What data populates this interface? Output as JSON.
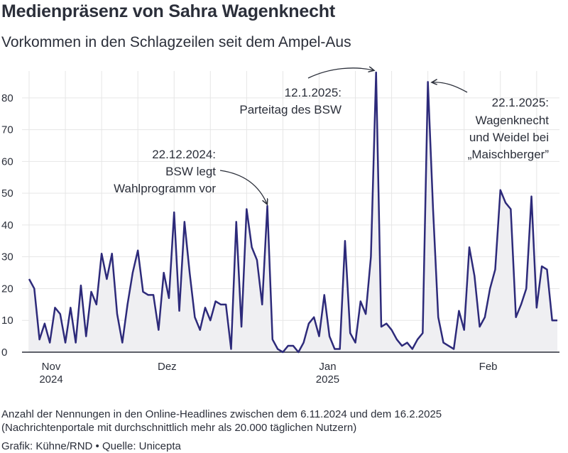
{
  "title": "Medienpräsenz von Sahra Wagenknecht",
  "subtitle": "Vorkommen in den Schlagzeilen seit dem Ampel-Aus",
  "footnote_line1": "Anzahl der Nennungen in den Online-Headlines zwischen dem 6.11.2024 und dem 16.2.2025",
  "footnote_line2": "(Nachrichtenportale mit durchschnittlich mehr als 20.000 täglichen Nutzern)",
  "credit": "Grafik: Kühne/RND • Quelle: Unicepta",
  "colors": {
    "line": "#2d2a7a",
    "area": "#efeff2",
    "grid": "#e6e6e6",
    "axis": "#2b2f3a"
  },
  "chart_data": {
    "type": "area",
    "title": "Medienpräsenz von Sahra Wagenknecht",
    "subtitle": "Vorkommen in den Schlagzeilen seit dem Ampel-Aus",
    "ylim": [
      0,
      88
    ],
    "y_ticks": [
      0,
      10,
      20,
      30,
      40,
      50,
      60,
      70,
      80
    ],
    "grid": true,
    "x_start": "2024-11-06",
    "x_end": "2025-02-16",
    "x_ticks": [
      {
        "date": "2024-11-01",
        "label": "Nov",
        "year": "2024"
      },
      {
        "date": "2024-12-01",
        "label": "Dez",
        "year": ""
      },
      {
        "date": "2025-01-01",
        "label": "Jan",
        "year": "2025"
      },
      {
        "date": "2025-02-01",
        "label": "Feb",
        "year": ""
      }
    ],
    "series": [
      {
        "values": [
          {
            "x": "2024-11-06",
            "y": 23
          },
          {
            "x": "2024-11-07",
            "y": 20
          },
          {
            "x": "2024-11-08",
            "y": 4
          },
          {
            "x": "2024-11-09",
            "y": 9
          },
          {
            "x": "2024-11-10",
            "y": 3
          },
          {
            "x": "2024-11-11",
            "y": 14
          },
          {
            "x": "2024-11-12",
            "y": 12
          },
          {
            "x": "2024-11-13",
            "y": 3
          },
          {
            "x": "2024-11-14",
            "y": 14
          },
          {
            "x": "2024-11-15",
            "y": 3
          },
          {
            "x": "2024-11-16",
            "y": 21
          },
          {
            "x": "2024-11-17",
            "y": 5
          },
          {
            "x": "2024-11-18",
            "y": 19
          },
          {
            "x": "2024-11-19",
            "y": 15
          },
          {
            "x": "2024-11-20",
            "y": 31
          },
          {
            "x": "2024-11-21",
            "y": 23
          },
          {
            "x": "2024-11-22",
            "y": 31
          },
          {
            "x": "2024-11-23",
            "y": 12
          },
          {
            "x": "2024-11-24",
            "y": 3
          },
          {
            "x": "2024-11-25",
            "y": 15
          },
          {
            "x": "2024-11-26",
            "y": 25
          },
          {
            "x": "2024-11-27",
            "y": 32
          },
          {
            "x": "2024-11-28",
            "y": 19
          },
          {
            "x": "2024-11-29",
            "y": 18
          },
          {
            "x": "2024-11-30",
            "y": 18
          },
          {
            "x": "2024-12-01",
            "y": 7
          },
          {
            "x": "2024-12-02",
            "y": 25
          },
          {
            "x": "2024-12-03",
            "y": 17
          },
          {
            "x": "2024-12-04",
            "y": 44
          },
          {
            "x": "2024-12-05",
            "y": 13
          },
          {
            "x": "2024-12-06",
            "y": 41
          },
          {
            "x": "2024-12-07",
            "y": 25
          },
          {
            "x": "2024-12-08",
            "y": 11
          },
          {
            "x": "2024-12-09",
            "y": 7
          },
          {
            "x": "2024-12-10",
            "y": 14
          },
          {
            "x": "2024-12-11",
            "y": 10
          },
          {
            "x": "2024-12-12",
            "y": 16
          },
          {
            "x": "2024-12-13",
            "y": 15
          },
          {
            "x": "2024-12-14",
            "y": 15
          },
          {
            "x": "2024-12-15",
            "y": 1
          },
          {
            "x": "2024-12-16",
            "y": 41
          },
          {
            "x": "2024-12-17",
            "y": 8
          },
          {
            "x": "2024-12-18",
            "y": 45
          },
          {
            "x": "2024-12-19",
            "y": 33
          },
          {
            "x": "2024-12-20",
            "y": 29
          },
          {
            "x": "2024-12-21",
            "y": 15
          },
          {
            "x": "2024-12-22",
            "y": 46
          },
          {
            "x": "2024-12-23",
            "y": 4
          },
          {
            "x": "2024-12-24",
            "y": 1
          },
          {
            "x": "2024-12-25",
            "y": 0
          },
          {
            "x": "2024-12-26",
            "y": 2
          },
          {
            "x": "2024-12-27",
            "y": 2
          },
          {
            "x": "2024-12-28",
            "y": 0
          },
          {
            "x": "2024-12-29",
            "y": 3
          },
          {
            "x": "2024-12-30",
            "y": 9
          },
          {
            "x": "2024-12-31",
            "y": 11
          },
          {
            "x": "2025-01-01",
            "y": 5
          },
          {
            "x": "2025-01-02",
            "y": 18
          },
          {
            "x": "2025-01-03",
            "y": 5
          },
          {
            "x": "2025-01-04",
            "y": 1
          },
          {
            "x": "2025-01-05",
            "y": 1
          },
          {
            "x": "2025-01-06",
            "y": 35
          },
          {
            "x": "2025-01-07",
            "y": 6
          },
          {
            "x": "2025-01-08",
            "y": 3
          },
          {
            "x": "2025-01-09",
            "y": 16
          },
          {
            "x": "2025-01-10",
            "y": 12
          },
          {
            "x": "2025-01-11",
            "y": 30
          },
          {
            "x": "2025-01-12",
            "y": 88
          },
          {
            "x": "2025-01-13",
            "y": 8
          },
          {
            "x": "2025-01-14",
            "y": 9
          },
          {
            "x": "2025-01-15",
            "y": 7
          },
          {
            "x": "2025-01-16",
            "y": 4
          },
          {
            "x": "2025-01-17",
            "y": 2
          },
          {
            "x": "2025-01-18",
            "y": 3
          },
          {
            "x": "2025-01-19",
            "y": 1
          },
          {
            "x": "2025-01-20",
            "y": 4
          },
          {
            "x": "2025-01-21",
            "y": 6
          },
          {
            "x": "2025-01-22",
            "y": 85
          },
          {
            "x": "2025-01-23",
            "y": 45
          },
          {
            "x": "2025-01-24",
            "y": 11
          },
          {
            "x": "2025-01-25",
            "y": 3
          },
          {
            "x": "2025-01-26",
            "y": 2
          },
          {
            "x": "2025-01-27",
            "y": 1
          },
          {
            "x": "2025-01-28",
            "y": 13
          },
          {
            "x": "2025-01-29",
            "y": 7
          },
          {
            "x": "2025-01-30",
            "y": 33
          },
          {
            "x": "2025-01-31",
            "y": 24
          },
          {
            "x": "2025-02-01",
            "y": 8
          },
          {
            "x": "2025-02-02",
            "y": 11
          },
          {
            "x": "2025-02-03",
            "y": 20
          },
          {
            "x": "2025-02-04",
            "y": 26
          },
          {
            "x": "2025-02-05",
            "y": 51
          },
          {
            "x": "2025-02-06",
            "y": 47
          },
          {
            "x": "2025-02-07",
            "y": 45
          },
          {
            "x": "2025-02-08",
            "y": 11
          },
          {
            "x": "2025-02-09",
            "y": 15
          },
          {
            "x": "2025-02-10",
            "y": 20
          },
          {
            "x": "2025-02-11",
            "y": 49
          },
          {
            "x": "2025-02-12",
            "y": 14
          },
          {
            "x": "2025-02-13",
            "y": 27
          },
          {
            "x": "2025-02-14",
            "y": 26
          },
          {
            "x": "2025-02-15",
            "y": 10
          },
          {
            "x": "2025-02-16",
            "y": 10
          }
        ]
      }
    ],
    "annotations": [
      {
        "date": "2024-12-22",
        "lines": [
          "22.12.2024:",
          "BSW legt",
          "Wahlprogramm vor"
        ]
      },
      {
        "date": "2025-01-12",
        "lines": [
          "12.1.2025:",
          "Parteitag des BSW"
        ]
      },
      {
        "date": "2025-01-22",
        "lines": [
          "22.1.2025:",
          "Wagenknecht",
          "und Weidel bei",
          "„Maischberger”"
        ]
      }
    ]
  }
}
